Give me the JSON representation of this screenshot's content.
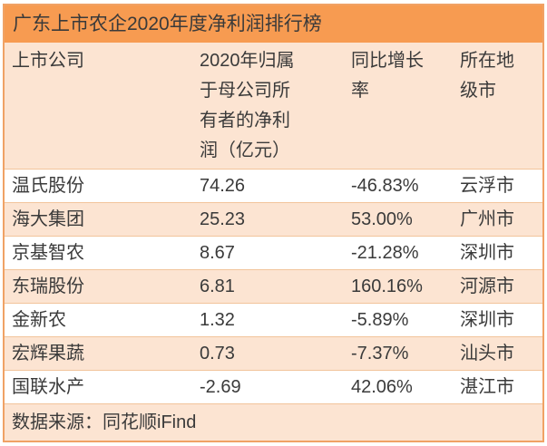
{
  "chart_data": {
    "type": "table",
    "title": "广东上市农企2020年度净利润排行榜",
    "columns": [
      "上市公司",
      "2020年归属于母公司所有者的净利润（亿元）",
      "同比增长率",
      "所在地级市"
    ],
    "rows": [
      [
        "温氏股份",
        74.26,
        "-46.83%",
        "云浮市"
      ],
      [
        "海大集团",
        25.23,
        "53.00%",
        "广州市"
      ],
      [
        "京基智农",
        8.67,
        "-21.28%",
        "深圳市"
      ],
      [
        "东瑞股份",
        6.81,
        "160.16%",
        "河源市"
      ],
      [
        "金新农",
        1.32,
        "-5.89%",
        "深圳市"
      ],
      [
        "宏辉果蔬",
        0.73,
        "-7.37%",
        "汕头市"
      ],
      [
        "国联水产",
        -2.69,
        "42.06%",
        "湛江市"
      ]
    ],
    "source": "数据来源：同花顺iFind",
    "legend_position": "none",
    "grid": "horizontal-dividers"
  },
  "colors": {
    "title_bg": "#f79b51",
    "alt_row_bg": "#fce4d2",
    "outer_border": "#f0a265",
    "row_divider": "#f2c49b",
    "text": "#3a3a3a",
    "page_bg": "#ffffff"
  }
}
